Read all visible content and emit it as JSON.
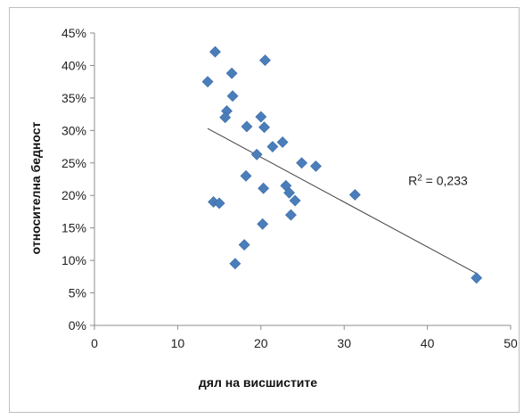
{
  "chart_data": {
    "type": "scatter",
    "title": "",
    "xlabel": "дял на висшистите",
    "ylabel": "относителна бедност",
    "xlim": [
      0,
      50
    ],
    "ylim": [
      0,
      45
    ],
    "x_ticks": [
      "0",
      "10",
      "20",
      "30",
      "40",
      "50"
    ],
    "y_ticks": [
      "0%",
      "5%",
      "10%",
      "15%",
      "20%",
      "25%",
      "30%",
      "35%",
      "40%",
      "45%"
    ],
    "grid": false,
    "marker": "diamond",
    "marker_color": "#4a7ebb",
    "trendline_color": "#404040",
    "points": [
      {
        "x": 13.6,
        "y": 37.5
      },
      {
        "x": 14.5,
        "y": 42.1
      },
      {
        "x": 16.5,
        "y": 38.8
      },
      {
        "x": 20.5,
        "y": 40.8
      },
      {
        "x": 16.6,
        "y": 35.3
      },
      {
        "x": 15.9,
        "y": 33.0
      },
      {
        "x": 15.7,
        "y": 32.0
      },
      {
        "x": 20.0,
        "y": 32.1
      },
      {
        "x": 18.3,
        "y": 30.6
      },
      {
        "x": 20.4,
        "y": 30.5
      },
      {
        "x": 21.4,
        "y": 27.5
      },
      {
        "x": 22.6,
        "y": 28.2
      },
      {
        "x": 19.5,
        "y": 26.3
      },
      {
        "x": 24.9,
        "y": 25.0
      },
      {
        "x": 26.6,
        "y": 24.5
      },
      {
        "x": 18.2,
        "y": 23.0
      },
      {
        "x": 20.3,
        "y": 21.1
      },
      {
        "x": 23.0,
        "y": 21.5
      },
      {
        "x": 23.4,
        "y": 20.4
      },
      {
        "x": 24.1,
        "y": 19.2
      },
      {
        "x": 31.3,
        "y": 20.1
      },
      {
        "x": 14.3,
        "y": 19.0
      },
      {
        "x": 15.0,
        "y": 18.8
      },
      {
        "x": 23.6,
        "y": 17.0
      },
      {
        "x": 20.2,
        "y": 15.6
      },
      {
        "x": 18.0,
        "y": 12.4
      },
      {
        "x": 16.9,
        "y": 9.5
      },
      {
        "x": 45.9,
        "y": 7.3
      }
    ],
    "trendline": {
      "x": [
        13.6,
        45.9
      ],
      "y": [
        30.3,
        8.0
      ]
    },
    "annotation": {
      "text": "R² = 0,233",
      "x": 37.7,
      "y": 21.6
    }
  }
}
